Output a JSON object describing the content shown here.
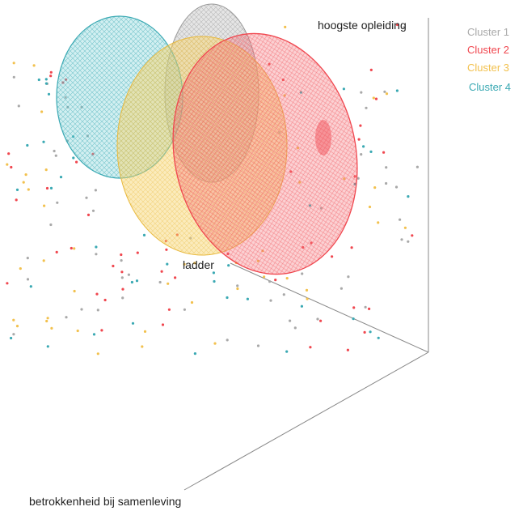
{
  "chart_data": {
    "type": "scatter",
    "axes": {
      "z": "hoogste opleiding",
      "y": "ladder",
      "x": "betrokkenheid bij samenleving"
    },
    "legend": {
      "placement": "top-right",
      "entries": [
        {
          "name": "Cluster 1",
          "color": "#a9a9a9"
        },
        {
          "name": "Cluster 2",
          "color": "#f0474f"
        },
        {
          "name": "Cluster 3",
          "color": "#f2c14e"
        },
        {
          "name": "Cluster 4",
          "color": "#3aa9b3"
        }
      ]
    },
    "grid": false
  }
}
